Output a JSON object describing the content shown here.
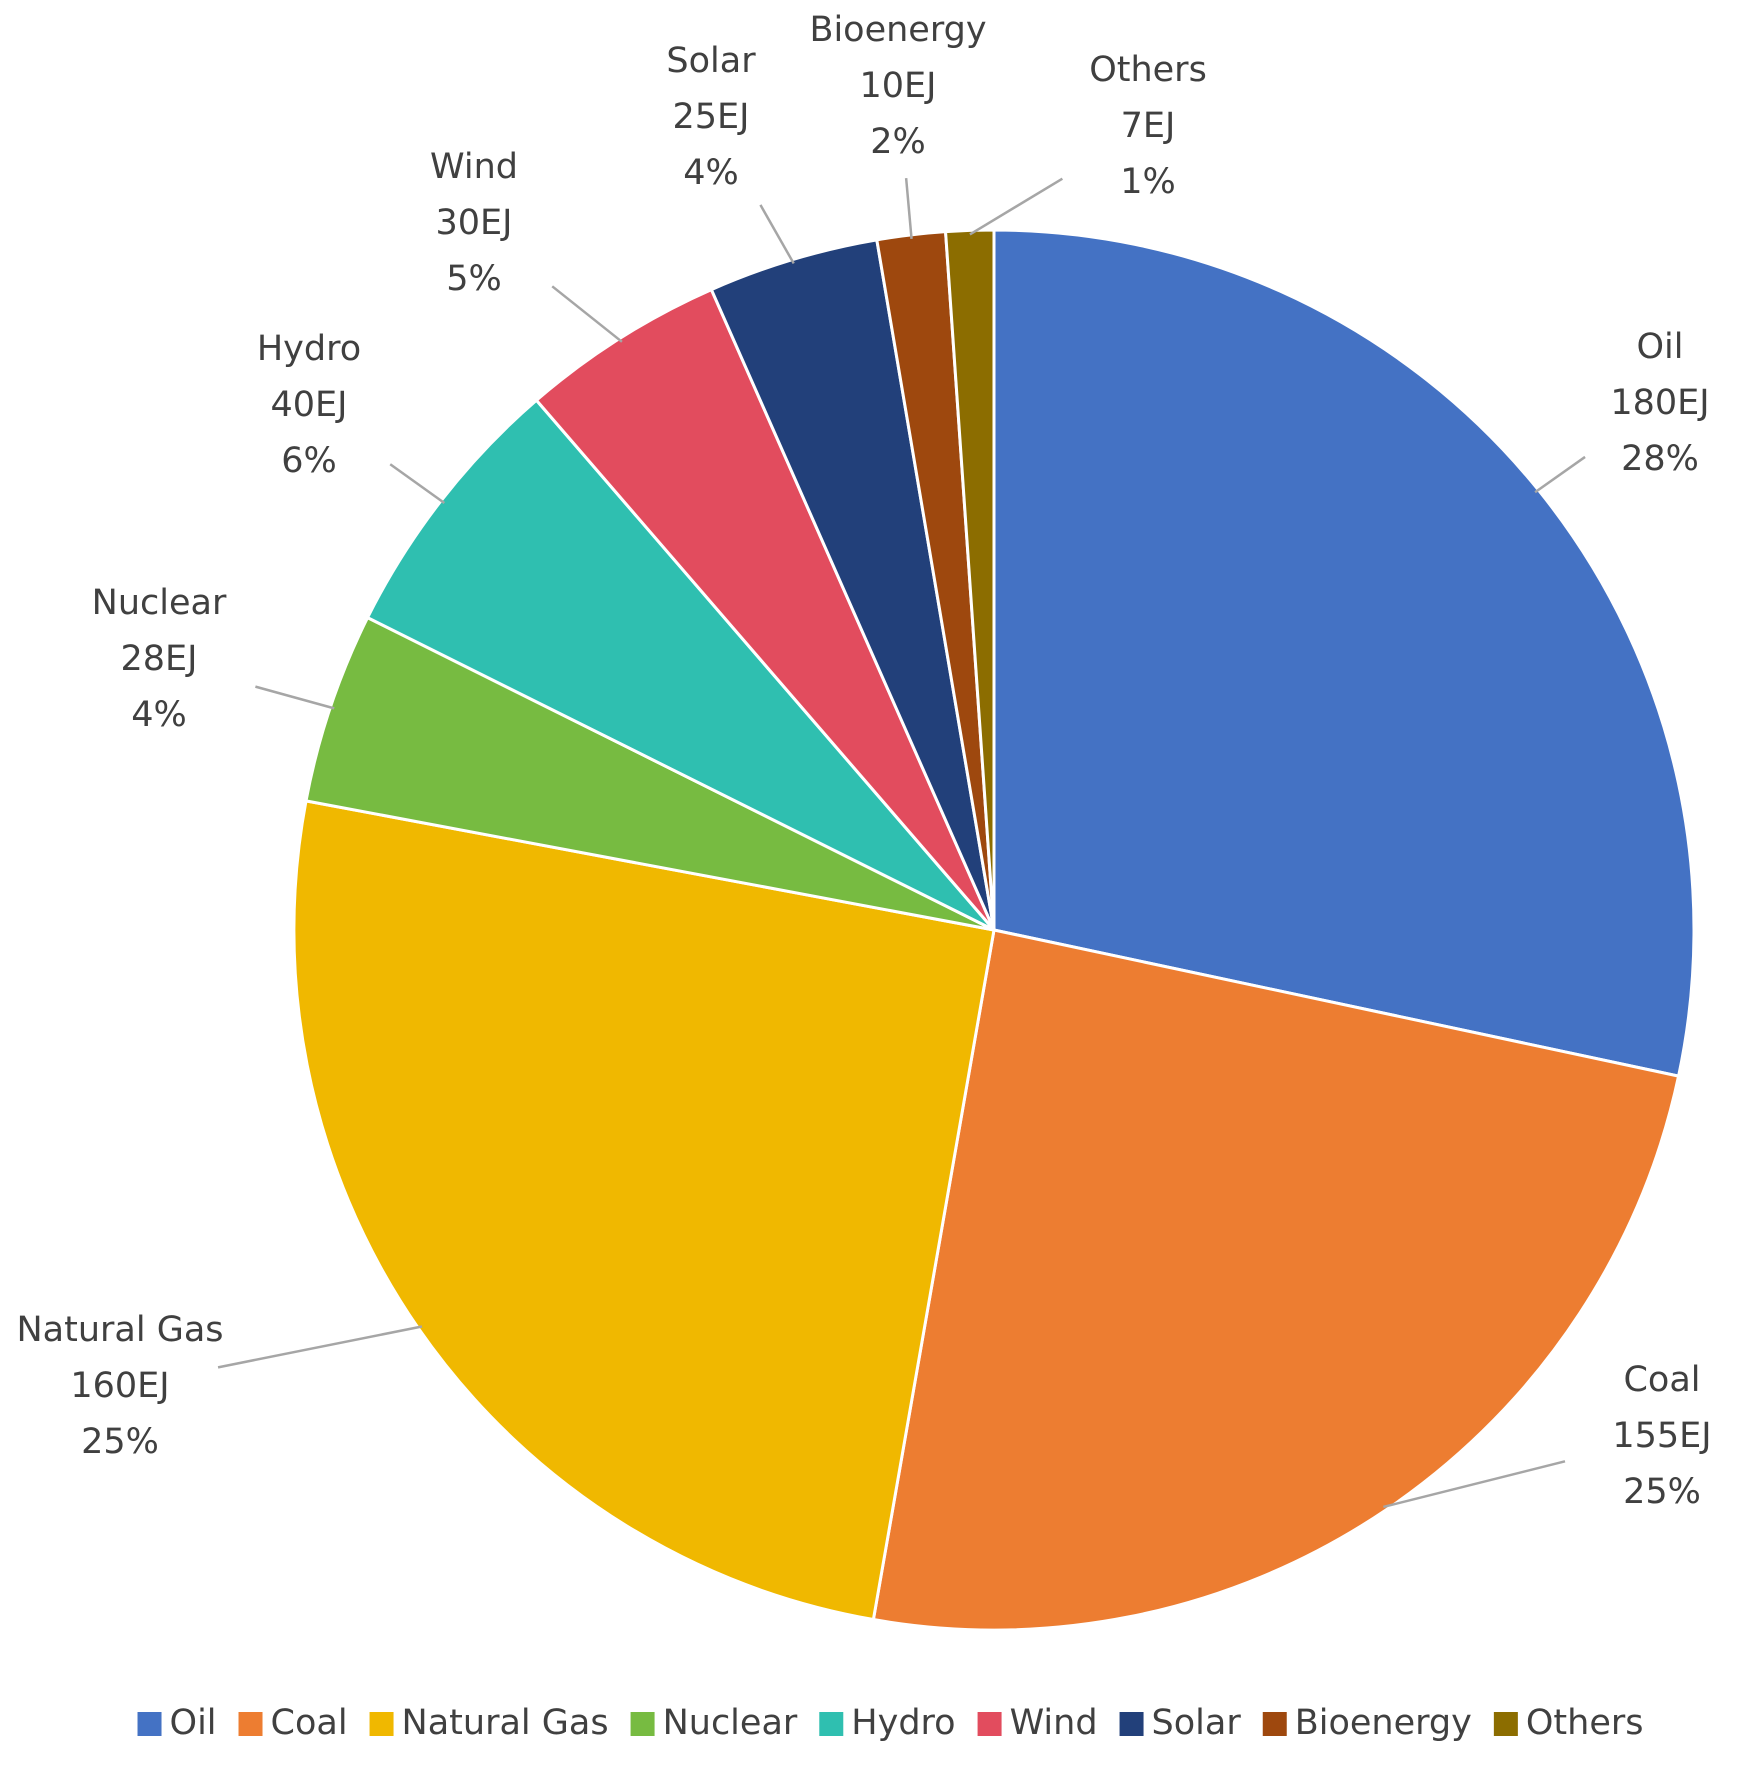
{
  "chart_data": {
    "type": "pie",
    "categories": [
      "Oil",
      "Coal",
      "Natural Gas",
      "Nuclear",
      "Hydro",
      "Wind",
      "Solar",
      "Bioenergy",
      "Others"
    ],
    "values": [
      180,
      155,
      160,
      28,
      40,
      30,
      25,
      10,
      7
    ],
    "value_labels": [
      "180EJ",
      "155EJ",
      "160EJ",
      "28EJ",
      "40EJ",
      "30EJ",
      "25EJ",
      "10EJ",
      "7EJ"
    ],
    "percents": [
      28,
      25,
      25,
      4,
      6,
      5,
      4,
      2,
      1
    ],
    "percent_labels": [
      "28%",
      "25%",
      "25%",
      "4%",
      "6%",
      "5%",
      "4%",
      "2%",
      "1%"
    ],
    "colors": [
      "#4472c4",
      "#ed7d31",
      "#f0b800",
      "#77bb41",
      "#2fbfb0",
      "#e24c5e",
      "#22407a",
      "#9e480e",
      "#8c6d00"
    ],
    "legend": "bottom"
  }
}
